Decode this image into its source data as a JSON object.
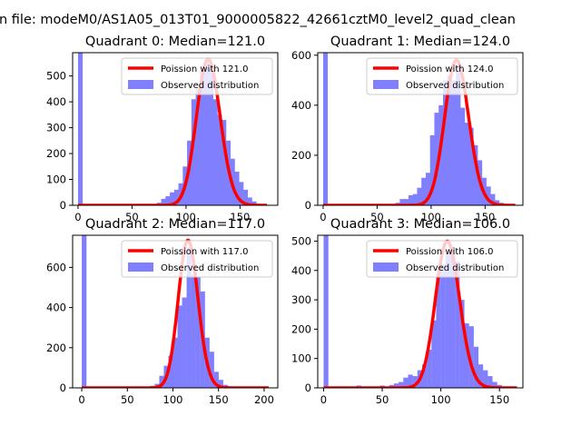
{
  "figure": {
    "suptitle": "n file: modeM0/AS1A05_013T01_9000005822_42661cztM0_level2_quad_clean"
  },
  "colors": {
    "hist": "#8080ff",
    "fit": "#ff0000",
    "frame": "#000000",
    "legend_border": "#cccccc"
  },
  "chart_data": [
    {
      "type": "bar",
      "title": "Quadrant 0: Median=121.0",
      "xlim": [
        -5,
        185
      ],
      "ylim": [
        0,
        590
      ],
      "xticks": [
        0,
        50,
        100,
        150
      ],
      "yticks": [
        0,
        100,
        200,
        300,
        400,
        500
      ],
      "legend": {
        "position": "top-right",
        "entries": [
          "Poission with 121.0",
          "Observed distribution"
        ]
      },
      "series": [
        {
          "name": "Observed distribution",
          "kind": "histogram",
          "bin_width": 4.3,
          "bins": [
            [
              0,
              590
            ],
            [
              73,
              10
            ],
            [
              77,
              25
            ],
            [
              81,
              35
            ],
            [
              85,
              50
            ],
            [
              89,
              60
            ],
            [
              93,
              85
            ],
            [
              97,
              150
            ],
            [
              101,
              250
            ],
            [
              105,
              410
            ],
            [
              109,
              450
            ],
            [
              113,
              520
            ],
            [
              117,
              560
            ],
            [
              121,
              530
            ],
            [
              125,
              410
            ],
            [
              129,
              350
            ],
            [
              133,
              330
            ],
            [
              137,
              250
            ],
            [
              141,
              180
            ],
            [
              145,
              130
            ],
            [
              149,
              90
            ],
            [
              153,
              60
            ],
            [
              157,
              30
            ],
            [
              161,
              15
            ]
          ]
        },
        {
          "name": "Poission with 121.0",
          "kind": "poisson",
          "mean": 121.0,
          "peak": 565,
          "range": [
            0,
            175
          ]
        }
      ]
    },
    {
      "type": "bar",
      "title": "Quadrant 1: Median=124.0",
      "xlim": [
        -5,
        185
      ],
      "ylim": [
        0,
        610
      ],
      "xticks": [
        0,
        50,
        100,
        150
      ],
      "yticks": [
        0,
        200,
        400,
        600
      ],
      "legend": {
        "position": "top-right",
        "entries": [
          "Poission with 124.0",
          "Observed distribution"
        ]
      },
      "series": [
        {
          "name": "Observed distribution",
          "kind": "histogram",
          "bin_width": 4.3,
          "bins": [
            [
              0,
              610
            ],
            [
              67,
              10
            ],
            [
              71,
              25
            ],
            [
              75,
              25
            ],
            [
              79,
              40
            ],
            [
              83,
              45
            ],
            [
              87,
              70
            ],
            [
              91,
              110
            ],
            [
              95,
              130
            ],
            [
              99,
              280
            ],
            [
              103,
              370
            ],
            [
              107,
              400
            ],
            [
              111,
              500
            ],
            [
              115,
              520
            ],
            [
              119,
              500
            ],
            [
              123,
              560
            ],
            [
              127,
              390
            ],
            [
              131,
              330
            ],
            [
              135,
              310
            ],
            [
              139,
              240
            ],
            [
              143,
              180
            ],
            [
              147,
              110
            ],
            [
              151,
              75
            ],
            [
              155,
              45
            ],
            [
              159,
              20
            ],
            [
              163,
              10
            ]
          ]
        },
        {
          "name": "Poission with 124.0",
          "kind": "poisson",
          "mean": 124.0,
          "peak": 580,
          "range": [
            0,
            178
          ]
        }
      ]
    },
    {
      "type": "bar",
      "title": "Quadrant 2: Median=117.0",
      "xlim": [
        -10,
        215
      ],
      "ylim": [
        0,
        760
      ],
      "xticks": [
        0,
        50,
        100,
        150,
        200
      ],
      "yticks": [
        0,
        200,
        400,
        600
      ],
      "legend": {
        "position": "top-right",
        "entries": [
          "Poission with 117.0",
          "Observed distribution"
        ]
      },
      "series": [
        {
          "name": "Observed distribution",
          "kind": "histogram",
          "bin_width": 5.2,
          "bins": [
            [
              0,
              760
            ],
            [
              75,
              10
            ],
            [
              80,
              20
            ],
            [
              85,
              60
            ],
            [
              90,
              110
            ],
            [
              95,
              160
            ],
            [
              100,
              250
            ],
            [
              105,
              410
            ],
            [
              110,
              450
            ],
            [
              115,
              700
            ],
            [
              120,
              560
            ],
            [
              125,
              550
            ],
            [
              130,
              480
            ],
            [
              135,
              250
            ],
            [
              140,
              180
            ],
            [
              145,
              80
            ],
            [
              150,
              40
            ],
            [
              155,
              15
            ]
          ]
        },
        {
          "name": "Poission with 117.0",
          "kind": "poisson",
          "mean": 117.0,
          "peak": 735,
          "range": [
            0,
            205
          ]
        }
      ]
    },
    {
      "type": "bar",
      "title": "Quadrant 3: Median=106.0",
      "xlim": [
        -5,
        170
      ],
      "ylim": [
        0,
        520
      ],
      "xticks": [
        0,
        50,
        100,
        150
      ],
      "yticks": [
        0,
        100,
        200,
        300,
        400,
        500
      ],
      "legend": {
        "position": "top-right",
        "entries": [
          "Poission with 106.0",
          "Observed distribution"
        ]
      },
      "series": [
        {
          "name": "Observed distribution",
          "kind": "histogram",
          "bin_width": 4.1,
          "bins": [
            [
              0,
              520
            ],
            [
              28,
              8
            ],
            [
              48,
              8
            ],
            [
              56,
              10
            ],
            [
              60,
              15
            ],
            [
              64,
              20
            ],
            [
              68,
              35
            ],
            [
              72,
              45
            ],
            [
              76,
              40
            ],
            [
              80,
              60
            ],
            [
              84,
              80
            ],
            [
              88,
              130
            ],
            [
              92,
              230
            ],
            [
              96,
              390
            ],
            [
              100,
              420
            ],
            [
              104,
              460
            ],
            [
              108,
              480
            ],
            [
              112,
              430
            ],
            [
              116,
              300
            ],
            [
              120,
              220
            ],
            [
              124,
              210
            ],
            [
              128,
              140
            ],
            [
              132,
              80
            ],
            [
              136,
              60
            ],
            [
              140,
              40
            ],
            [
              144,
              20
            ],
            [
              148,
              10
            ]
          ]
        },
        {
          "name": "Poission with 106.0",
          "kind": "poisson",
          "mean": 106.0,
          "peak": 500,
          "range": [
            0,
            165
          ]
        }
      ]
    }
  ]
}
